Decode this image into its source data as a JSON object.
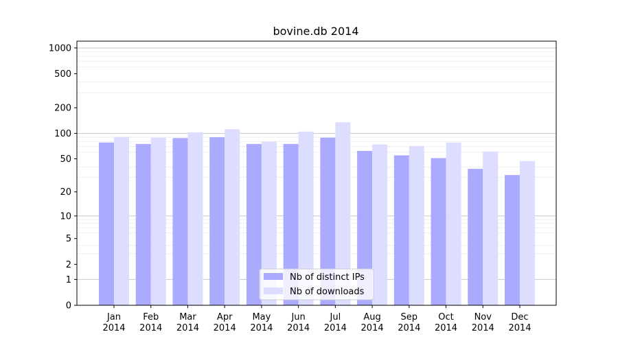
{
  "chart_data": {
    "type": "bar",
    "title": "bovine.db 2014",
    "xlabel": "",
    "ylabel": "",
    "yscale": "symlog",
    "ylim": [
      0,
      1200
    ],
    "y_ticks": [
      0,
      1,
      2,
      5,
      10,
      20,
      50,
      100,
      200,
      500,
      1000
    ],
    "categories": [
      {
        "month": "Jan",
        "year": "2014"
      },
      {
        "month": "Feb",
        "year": "2014"
      },
      {
        "month": "Mar",
        "year": "2014"
      },
      {
        "month": "Apr",
        "year": "2014"
      },
      {
        "month": "May",
        "year": "2014"
      },
      {
        "month": "Jun",
        "year": "2014"
      },
      {
        "month": "Jul",
        "year": "2014"
      },
      {
        "month": "Aug",
        "year": "2014"
      },
      {
        "month": "Sep",
        "year": "2014"
      },
      {
        "month": "Oct",
        "year": "2014"
      },
      {
        "month": "Nov",
        "year": "2014"
      },
      {
        "month": "Dec",
        "year": "2014"
      }
    ],
    "series": [
      {
        "name": "Nb of distinct IPs",
        "color": "#aaaaff",
        "values": [
          78,
          75,
          88,
          90,
          75,
          75,
          89,
          62,
          55,
          51,
          38,
          32
        ]
      },
      {
        "name": "Nb of downloads",
        "color": "#ddddff",
        "values": [
          91,
          89,
          103,
          112,
          80,
          105,
          135,
          74,
          71,
          78,
          61,
          47
        ]
      }
    ],
    "grid": true,
    "legend_position": "lower-center"
  }
}
